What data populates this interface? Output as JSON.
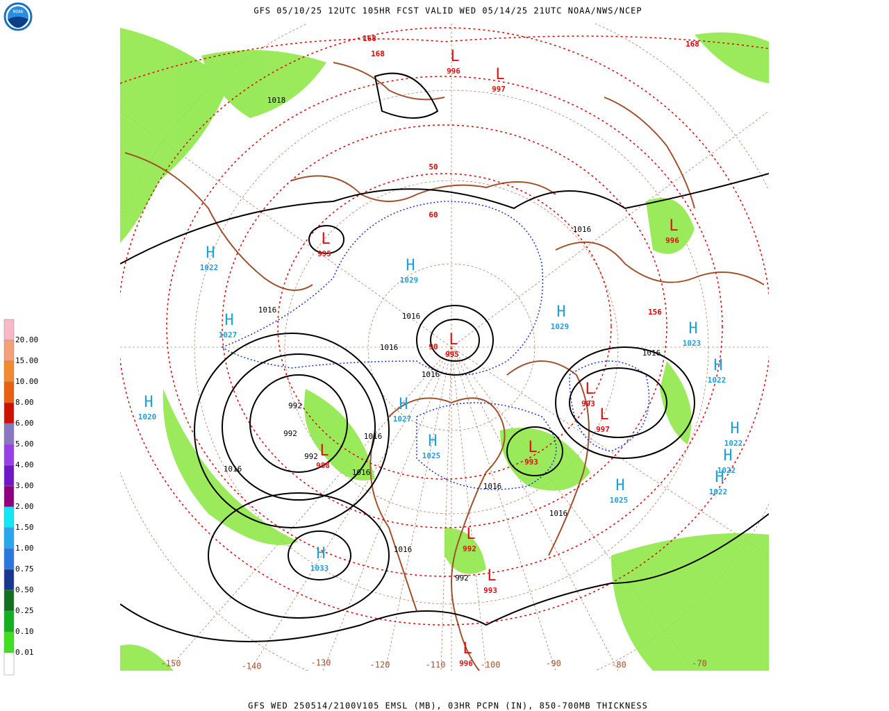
{
  "header": {
    "logo": "NOAA",
    "title": "GFS 05/10/25 12UTC 105HR FCST VALID WED 05/14/25 21UTC NOAA/NWS/NCEP"
  },
  "legend": {
    "labels": [
      "20.00",
      "15.00",
      "10.00",
      "8.00",
      "6.00",
      "5.00",
      "4.00",
      "3.00",
      "2.00",
      "1.50",
      "1.00",
      "0.75",
      "0.50",
      "0.25",
      "0.10",
      "0.01"
    ]
  },
  "map": {
    "centers": [
      {
        "symbol": "H",
        "pressure": "1022"
      },
      {
        "symbol": "H",
        "pressure": "1027"
      },
      {
        "symbol": "H",
        "pressure": "1020"
      },
      {
        "symbol": "H",
        "pressure": "1033"
      },
      {
        "symbol": "H",
        "pressure": "1029"
      },
      {
        "symbol": "H",
        "pressure": "1029"
      },
      {
        "symbol": "H",
        "pressure": "1023"
      },
      {
        "symbol": "H",
        "pressure": "1022"
      },
      {
        "symbol": "H",
        "pressure": "1022"
      },
      {
        "symbol": "H",
        "pressure": "1022"
      },
      {
        "symbol": "H",
        "pressure": "1022"
      },
      {
        "symbol": "H",
        "pressure": "1025"
      },
      {
        "symbol": "H",
        "pressure": "1027"
      },
      {
        "symbol": "H",
        "pressure": "1025"
      },
      {
        "symbol": "L",
        "pressure": "995"
      },
      {
        "symbol": "L",
        "pressure": "995"
      },
      {
        "symbol": "L",
        "pressure": "988"
      },
      {
        "symbol": "L",
        "pressure": "996"
      },
      {
        "symbol": "L",
        "pressure": "997"
      },
      {
        "symbol": "L",
        "pressure": "996"
      },
      {
        "symbol": "L",
        "pressure": "993"
      },
      {
        "symbol": "L",
        "pressure": "997"
      },
      {
        "symbol": "L",
        "pressure": "993"
      },
      {
        "symbol": "L",
        "pressure": "992"
      },
      {
        "symbol": "L",
        "pressure": "993"
      },
      {
        "symbol": "L",
        "pressure": "996"
      }
    ],
    "isobar_labels": [
      "1016",
      "1016",
      "1016",
      "1016",
      "1016",
      "1016",
      "1016",
      "1016",
      "1016",
      "1016",
      "1016",
      "1016",
      "1018",
      "992",
      "992",
      "992",
      "992"
    ],
    "thickness_labels": [
      "168",
      "168",
      "168",
      "156",
      "90",
      "50",
      "60"
    ],
    "longitude_labels": [
      "-150",
      "-140",
      "-130",
      "-120",
      "-110",
      "-100",
      "-90",
      "-80",
      "-70"
    ]
  },
  "footer": {
    "caption": "GFS WED 250514/2100V105 EMSL (MB), 03HR PCPN (IN), 850-700MB THICKNESS"
  }
}
